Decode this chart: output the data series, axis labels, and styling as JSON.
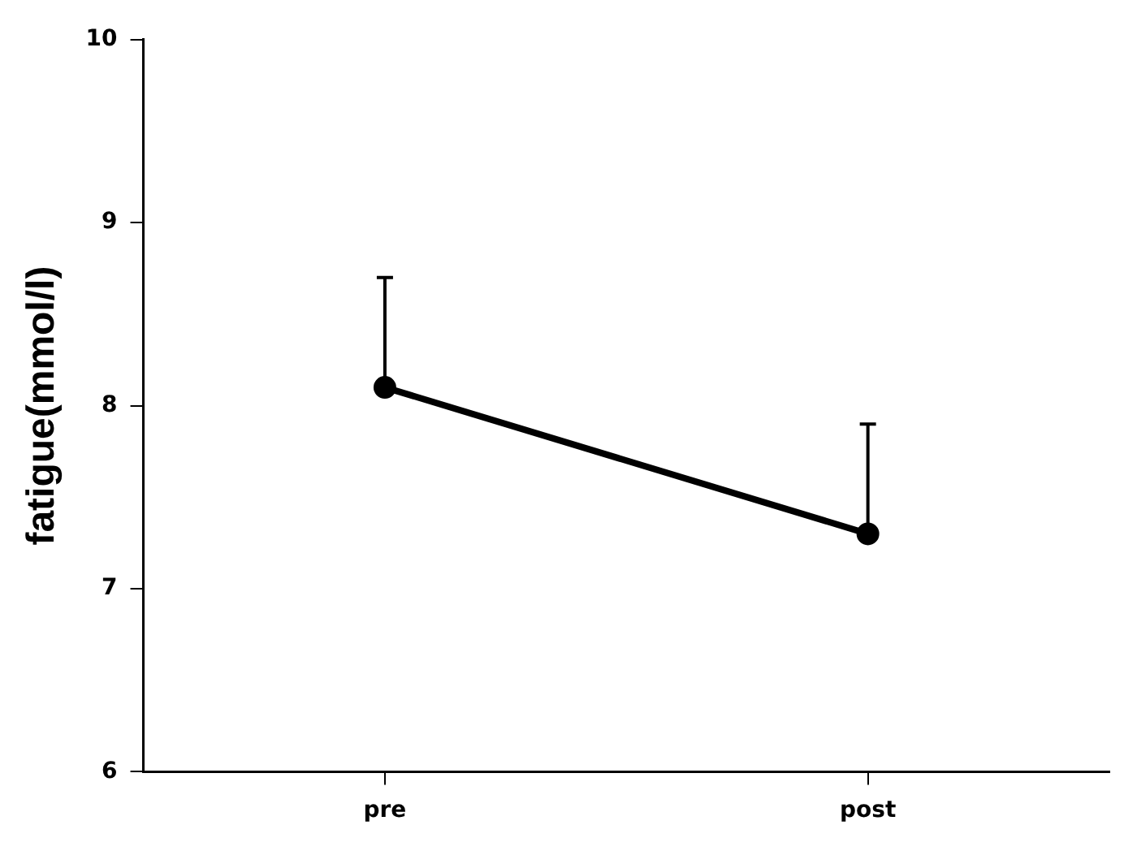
{
  "chart_data": {
    "type": "line",
    "ylabel": "fatigue(mmol/l)",
    "categories": [
      "pre",
      "post"
    ],
    "series": [
      {
        "color": "#000000",
        "values": [
          8.1,
          7.3
        ],
        "errors": [
          [
            8.1,
            8.7
          ],
          [
            7.3,
            7.9
          ]
        ]
      }
    ],
    "ylim": [
      6,
      10
    ],
    "yticks": [
      6,
      7,
      8,
      9,
      10
    ],
    "grid": false,
    "legend": false,
    "marker": "circle",
    "line_style": "solid"
  }
}
